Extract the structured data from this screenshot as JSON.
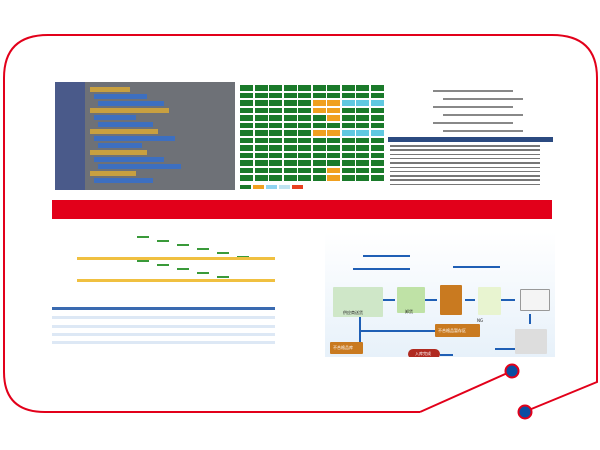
{
  "colors": {
    "frame": "#e2001a",
    "bar": "#e2001a",
    "dot": "#0b4ea2",
    "grid_green": "#1a7a2a",
    "grid_orange": "#f0a020",
    "grid_cyan": "#60c8e0",
    "flow_arrow": "#1f5fb5"
  },
  "panels": {
    "blocks": {
      "icon": "visual-programming-blocks"
    },
    "grid": {
      "icon": "status-grid",
      "legend_colors": [
        "#1a7a2a",
        "#f0a020",
        "#8fd3f0",
        "#bfe3f0",
        "#e84020"
      ]
    },
    "code": {
      "icon": "code-editor-with-log"
    },
    "table": {
      "icon": "spreadsheet-schedule"
    },
    "flow": {
      "labels": {
        "supplier": "供应商送货",
        "unload": "卸货",
        "reject_area": "不合格品暂存区",
        "reject_store": "不合格品库",
        "done": "入库完成",
        "ng": "NG"
      }
    }
  }
}
